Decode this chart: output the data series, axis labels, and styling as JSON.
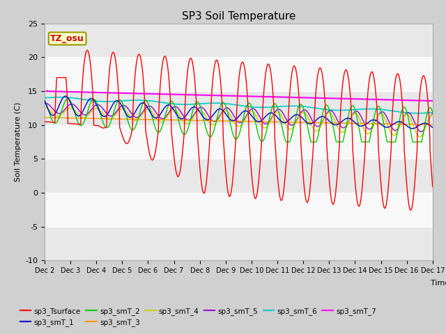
{
  "title": "SP3 Soil Temperature",
  "ylabel": "Soil Temperature (C)",
  "xlabel": "Time",
  "ylim": [
    -10,
    25
  ],
  "yticks": [
    -10,
    -5,
    0,
    5,
    10,
    15,
    20,
    25
  ],
  "xtick_labels": [
    "Dec 2",
    "Dec 3",
    "Dec 4",
    "Dec 5",
    "Dec 6",
    "Dec 7",
    "Dec 8",
    "Dec 9",
    "Dec 10",
    "Dec 11",
    "Dec 12",
    "Dec 13",
    "Dec 14",
    "Dec 15",
    "Dec 16",
    "Dec 17"
  ],
  "annotation_text": "TZ_osu",
  "annotation_color": "#cc0000",
  "annotation_bg": "#ffffcc",
  "annotation_border": "#999900",
  "colors": {
    "sp3_Tsurface": "#ff0000",
    "sp3_smT_1": "#0000cc",
    "sp3_smT_2": "#00cc00",
    "sp3_smT_3": "#ff9900",
    "sp3_smT_4": "#cccc00",
    "sp3_smT_5": "#9900cc",
    "sp3_smT_6": "#00cccc",
    "sp3_smT_7": "#ff00ff"
  },
  "fig_bg": "#d0d0d0",
  "plot_bg": "#f0f0f0",
  "band_colors": [
    "#e8e8e8",
    "#f8f8f8"
  ]
}
